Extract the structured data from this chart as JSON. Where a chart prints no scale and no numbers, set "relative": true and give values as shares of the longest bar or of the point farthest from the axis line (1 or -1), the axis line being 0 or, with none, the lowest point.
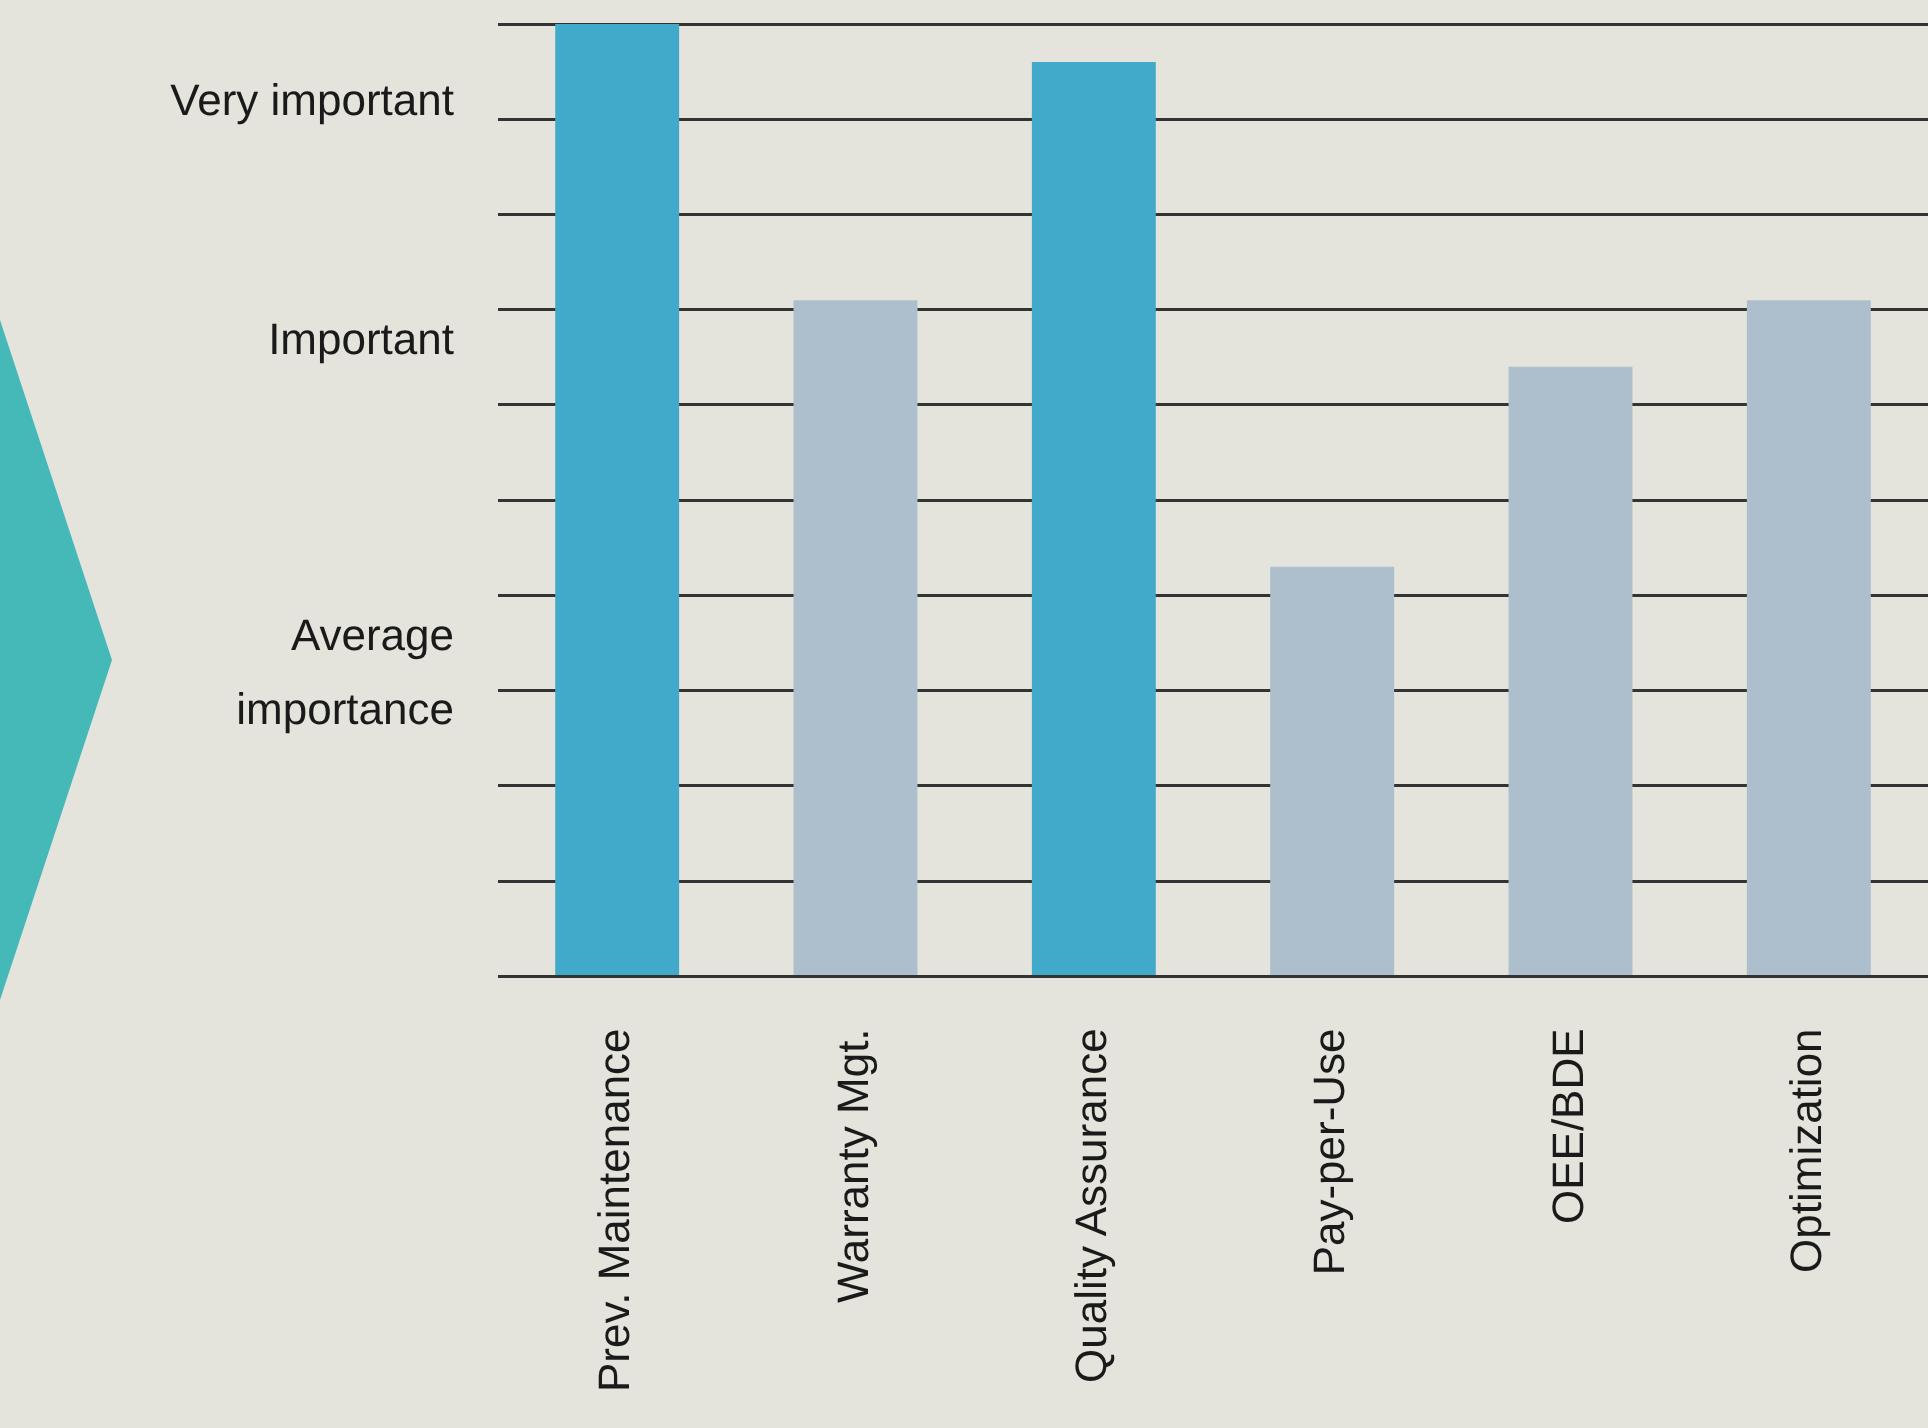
{
  "chart_data": {
    "type": "bar",
    "categories": [
      "Prev. Maintenance",
      "Warranty Mgt.",
      "Quality Assurance",
      "Pay-per-Use",
      "OEE/BDE",
      "Optimization"
    ],
    "values": [
      1,
      0.71,
      0.96,
      0.43,
      0.64,
      0.71
    ],
    "colors": [
      "#41aacb",
      "#adbfcc",
      "#41aacb",
      "#adbfcc",
      "#adbfcc",
      "#adbfcc"
    ],
    "relative": true,
    "annotations": [
      "Average importance",
      "Important",
      "Very important"
    ],
    "grid": "y",
    "legend": false
  }
}
